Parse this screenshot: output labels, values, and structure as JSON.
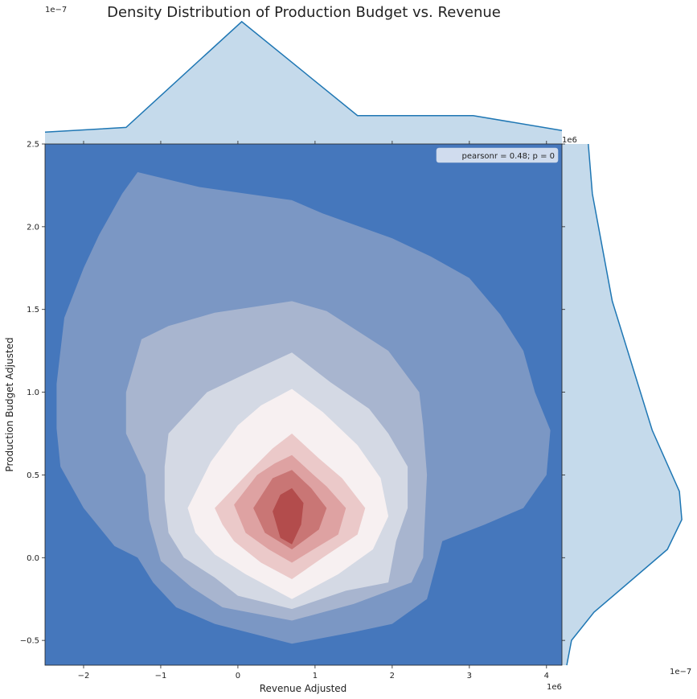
{
  "chart_data": {
    "type": "kde-joint",
    "title": "Density Distribution of Production Budget vs. Revenue",
    "xlabel": "Revenue Adjusted",
    "ylabel": "Production Budget Adjusted",
    "x_multiplier": "1e6",
    "y_multiplier": "1e6",
    "marginal_top_multiplier": "1e−7",
    "marginal_right_multiplier": "1e−7",
    "xlim": [
      -2.5,
      4.2
    ],
    "ylim": [
      -0.65,
      2.5
    ],
    "x_ticks": [
      -2,
      -1,
      0,
      1,
      2,
      3,
      4
    ],
    "x_tick_labels": [
      "−2",
      "−1",
      "0",
      "1",
      "2",
      "3",
      "4"
    ],
    "y_ticks": [
      -0.5,
      0.0,
      0.5,
      1.0,
      1.5,
      2.0,
      2.5
    ],
    "y_tick_labels": [
      "−0.5",
      "0.0",
      "0.5",
      "1.0",
      "1.5",
      "2.0",
      "2.5"
    ],
    "legend": {
      "text": "pearsonr = 0.48; p = 0",
      "position": "upper right"
    },
    "colors": {
      "levels": [
        "#4577bc",
        "#7b97c4",
        "#a8b5cf",
        "#d4d9e4",
        "#f7f0f1",
        "#ebc9c9",
        "#dea2a2",
        "#c97675",
        "#b34c4c"
      ],
      "marginal_fill": "#c5daeb",
      "marginal_line": "#1f77b4"
    },
    "contours": [
      {
        "level": 1,
        "points": [
          [
            -2.35,
            0.78
          ],
          [
            -2.35,
            1.05
          ],
          [
            -2.25,
            1.45
          ],
          [
            -2.0,
            1.75
          ],
          [
            -1.8,
            1.95
          ],
          [
            -1.5,
            2.2
          ],
          [
            -1.3,
            2.33
          ],
          [
            -0.5,
            2.24
          ],
          [
            0.7,
            2.16
          ],
          [
            1.1,
            2.08
          ],
          [
            2.0,
            1.93
          ],
          [
            2.5,
            1.82
          ],
          [
            3.0,
            1.69
          ],
          [
            3.4,
            1.47
          ],
          [
            3.7,
            1.25
          ],
          [
            3.85,
            1.0
          ],
          [
            4.05,
            0.77
          ],
          [
            4.0,
            0.5
          ],
          [
            3.7,
            0.3
          ],
          [
            3.2,
            0.2
          ],
          [
            2.65,
            0.1
          ],
          [
            2.45,
            -0.25
          ],
          [
            2.0,
            -0.4
          ],
          [
            1.5,
            -0.45
          ],
          [
            0.7,
            -0.52
          ],
          [
            -0.3,
            -0.4
          ],
          [
            -0.8,
            -0.3
          ],
          [
            -1.1,
            -0.15
          ],
          [
            -1.3,
            0.0
          ],
          [
            -1.6,
            0.07
          ],
          [
            -2.0,
            0.3
          ],
          [
            -2.3,
            0.55
          ]
        ]
      },
      {
        "level": 2,
        "points": [
          [
            -1.45,
            0.75
          ],
          [
            -1.45,
            1.0
          ],
          [
            -1.25,
            1.32
          ],
          [
            -0.9,
            1.4
          ],
          [
            -0.3,
            1.48
          ],
          [
            0.7,
            1.55
          ],
          [
            1.15,
            1.49
          ],
          [
            1.95,
            1.25
          ],
          [
            2.35,
            1.0
          ],
          [
            2.4,
            0.8
          ],
          [
            2.45,
            0.5
          ],
          [
            2.4,
            0.0
          ],
          [
            2.25,
            -0.15
          ],
          [
            1.5,
            -0.28
          ],
          [
            0.7,
            -0.38
          ],
          [
            -0.2,
            -0.3
          ],
          [
            -0.6,
            -0.18
          ],
          [
            -1.0,
            -0.02
          ],
          [
            -1.15,
            0.23
          ],
          [
            -1.2,
            0.5
          ]
        ]
      },
      {
        "level": 3,
        "points": [
          [
            -0.95,
            0.55
          ],
          [
            -0.9,
            0.75
          ],
          [
            -0.7,
            0.85
          ],
          [
            -0.4,
            1.0
          ],
          [
            0.05,
            1.1
          ],
          [
            0.7,
            1.24
          ],
          [
            1.2,
            1.06
          ],
          [
            1.7,
            0.9
          ],
          [
            1.95,
            0.75
          ],
          [
            2.2,
            0.55
          ],
          [
            2.2,
            0.3
          ],
          [
            2.05,
            0.1
          ],
          [
            1.95,
            -0.15
          ],
          [
            1.4,
            -0.2
          ],
          [
            0.7,
            -0.31
          ],
          [
            0.0,
            -0.23
          ],
          [
            -0.3,
            -0.12
          ],
          [
            -0.7,
            0.0
          ],
          [
            -0.9,
            0.15
          ],
          [
            -0.95,
            0.35
          ]
        ]
      },
      {
        "level": 4,
        "points": [
          [
            -0.65,
            0.3
          ],
          [
            -0.35,
            0.58
          ],
          [
            0.0,
            0.8
          ],
          [
            0.3,
            0.92
          ],
          [
            0.7,
            1.02
          ],
          [
            1.1,
            0.88
          ],
          [
            1.55,
            0.68
          ],
          [
            1.85,
            0.48
          ],
          [
            1.95,
            0.25
          ],
          [
            1.75,
            0.05
          ],
          [
            1.3,
            -0.1
          ],
          [
            0.7,
            -0.25
          ],
          [
            0.1,
            -0.1
          ],
          [
            -0.3,
            0.02
          ],
          [
            -0.55,
            0.15
          ]
        ]
      },
      {
        "level": 5,
        "points": [
          [
            -0.3,
            0.3
          ],
          [
            0.15,
            0.52
          ],
          [
            0.45,
            0.66
          ],
          [
            0.7,
            0.75
          ],
          [
            1.05,
            0.6
          ],
          [
            1.35,
            0.48
          ],
          [
            1.65,
            0.3
          ],
          [
            1.55,
            0.14
          ],
          [
            1.1,
            0.0
          ],
          [
            0.7,
            -0.13
          ],
          [
            0.3,
            -0.03
          ],
          [
            -0.05,
            0.1
          ],
          [
            -0.2,
            0.2
          ]
        ]
      },
      {
        "level": 6,
        "points": [
          [
            -0.05,
            0.32
          ],
          [
            0.25,
            0.5
          ],
          [
            0.48,
            0.57
          ],
          [
            0.7,
            0.62
          ],
          [
            0.98,
            0.5
          ],
          [
            1.15,
            0.43
          ],
          [
            1.4,
            0.3
          ],
          [
            1.3,
            0.14
          ],
          [
            0.98,
            0.05
          ],
          [
            0.7,
            -0.03
          ],
          [
            0.4,
            0.05
          ],
          [
            0.1,
            0.15
          ]
        ]
      },
      {
        "level": 7,
        "points": [
          [
            0.2,
            0.3
          ],
          [
            0.45,
            0.48
          ],
          [
            0.7,
            0.53
          ],
          [
            0.95,
            0.42
          ],
          [
            1.15,
            0.3
          ],
          [
            1.05,
            0.17
          ],
          [
            0.7,
            0.05
          ],
          [
            0.35,
            0.15
          ]
        ]
      },
      {
        "level": 8,
        "points": [
          [
            0.45,
            0.28
          ],
          [
            0.55,
            0.38
          ],
          [
            0.7,
            0.42
          ],
          [
            0.85,
            0.33
          ],
          [
            0.82,
            0.2
          ],
          [
            0.7,
            0.08
          ],
          [
            0.55,
            0.12
          ]
        ]
      }
    ],
    "marginal_top": {
      "x": [
        -2.5,
        -1.45,
        0.05,
        1.55,
        3.05,
        4.2
      ],
      "density": [
        0.15,
        0.21,
        1.55,
        0.36,
        0.36,
        0.17
      ],
      "ylim": [
        0,
        1.6
      ]
    },
    "marginal_right": {
      "y": [
        -0.65,
        -0.5,
        -0.33,
        0.05,
        0.23,
        0.4,
        0.77,
        1.55,
        2.2,
        2.5
      ],
      "density": [
        0.06,
        0.12,
        0.4,
        1.32,
        1.5,
        1.47,
        1.13,
        0.63,
        0.38,
        0.33
      ],
      "xlim": [
        0,
        1.6
      ]
    }
  }
}
